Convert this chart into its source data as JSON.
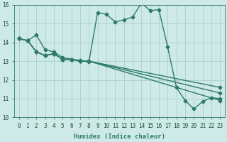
{
  "xlabel": "Humidex (Indice chaleur)",
  "xlim": [
    -0.5,
    23.5
  ],
  "ylim": [
    10,
    16
  ],
  "yticks": [
    10,
    11,
    12,
    13,
    14,
    15,
    16
  ],
  "xticks": [
    0,
    1,
    2,
    3,
    4,
    5,
    6,
    7,
    8,
    9,
    10,
    11,
    12,
    13,
    14,
    15,
    16,
    17,
    18,
    19,
    20,
    21,
    22,
    23
  ],
  "bg_color": "#ceeae6",
  "line_color": "#2d7a6a",
  "grid_color": "#aacfcb",
  "lines": [
    {
      "x": [
        0,
        1,
        2,
        3,
        4,
        5,
        6,
        7,
        8,
        9,
        10,
        11,
        12,
        13,
        14,
        15,
        16,
        17,
        18,
        19,
        20,
        21,
        22,
        23
      ],
      "y": [
        14.2,
        14.1,
        14.4,
        13.6,
        13.5,
        13.2,
        13.1,
        13.05,
        12.95,
        15.6,
        15.5,
        15.1,
        15.2,
        15.35,
        16.1,
        15.7,
        15.75,
        13.75,
        11.6,
        10.9,
        10.45,
        10.85,
        11.05,
        11.0
      ]
    },
    {
      "x": [
        0,
        1,
        2,
        3,
        4,
        5,
        6,
        7,
        8,
        23
      ],
      "y": [
        14.2,
        14.1,
        13.5,
        13.3,
        13.4,
        13.1,
        13.1,
        13.0,
        13.0,
        11.6
      ]
    },
    {
      "x": [
        0,
        1,
        2,
        3,
        4,
        5,
        6,
        7,
        8,
        23
      ],
      "y": [
        14.2,
        14.1,
        13.5,
        13.3,
        13.4,
        13.1,
        13.1,
        13.0,
        13.0,
        11.3
      ]
    },
    {
      "x": [
        0,
        1,
        2,
        3,
        4,
        5,
        6,
        7,
        8,
        23
      ],
      "y": [
        14.2,
        14.1,
        13.5,
        13.3,
        13.4,
        13.1,
        13.1,
        13.0,
        13.0,
        10.9
      ]
    }
  ],
  "marker": "D",
  "markersize": 2.5,
  "linewidth": 1.0
}
